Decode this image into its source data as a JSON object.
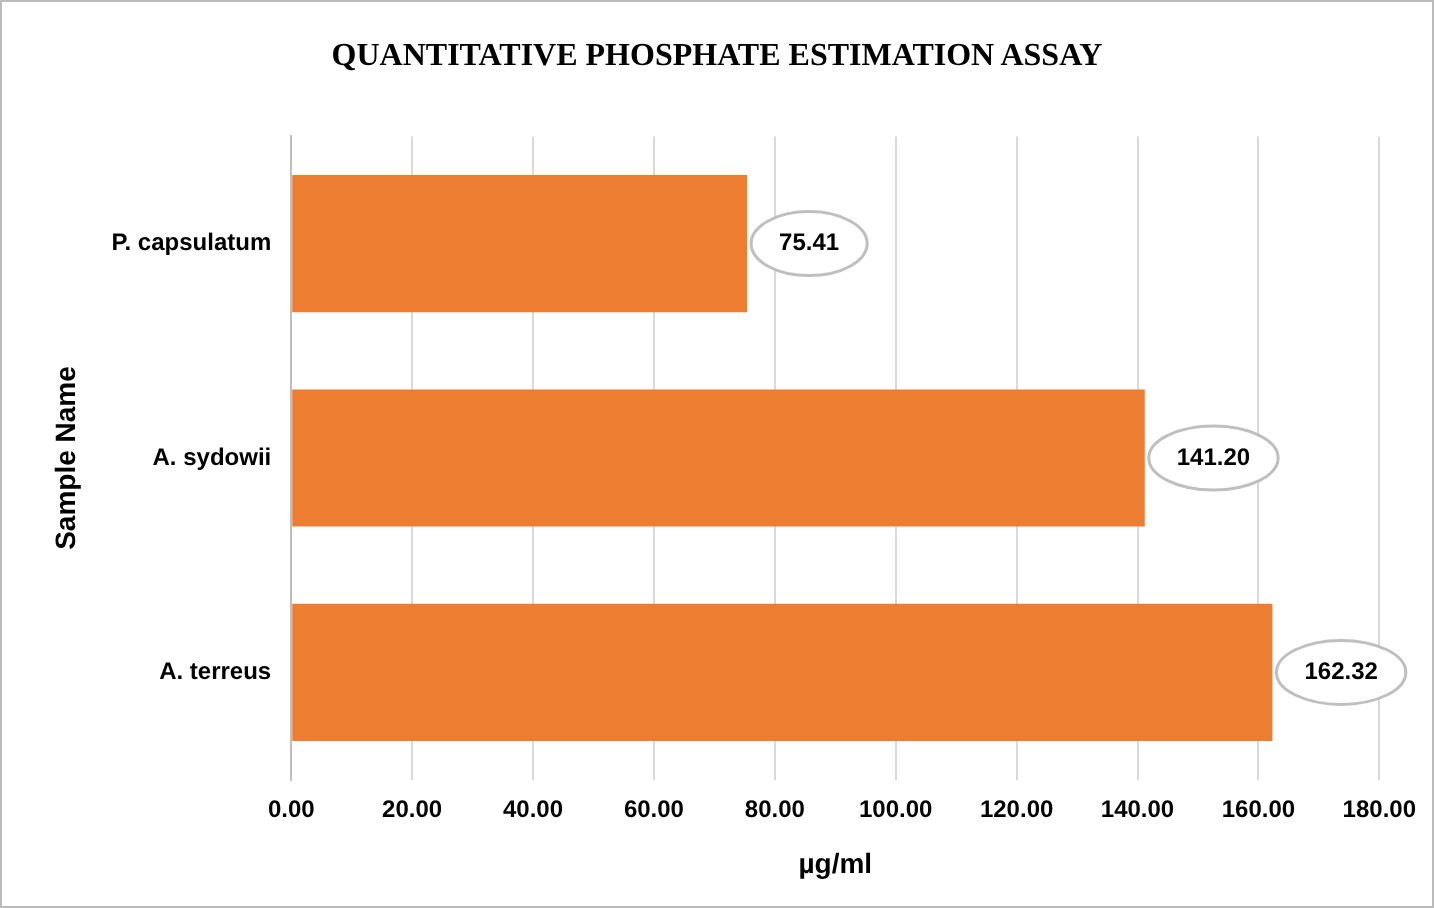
{
  "chart_data": {
    "type": "bar",
    "orientation": "horizontal",
    "title": "QUANTITATIVE PHOSPHATE ESTIMATION ASSAY",
    "xlabel": "µg/ml",
    "ylabel": "Sample Name",
    "categories": [
      "P. capsulatum",
      "A. sydowii",
      "A. terreus"
    ],
    "values": [
      75.41,
      141.2,
      162.32
    ],
    "color": "#ed7d31",
    "value_labels": [
      "75.41",
      "141.20",
      "162.32"
    ],
    "xlim": [
      0,
      180
    ],
    "xticks": [
      {
        "value": 0,
        "label": "0.00"
      },
      {
        "value": 20,
        "label": "20.00"
      },
      {
        "value": 40,
        "label": "40.00"
      },
      {
        "value": 60,
        "label": "60.00"
      },
      {
        "value": 80,
        "label": "80.00"
      },
      {
        "value": 100,
        "label": "100.00"
      },
      {
        "value": 120,
        "label": "120.00"
      },
      {
        "value": 140,
        "label": "140.00"
      },
      {
        "value": 160,
        "label": "160.00"
      },
      {
        "value": 180,
        "label": "180.00"
      }
    ],
    "grid": "x",
    "legend": false
  }
}
